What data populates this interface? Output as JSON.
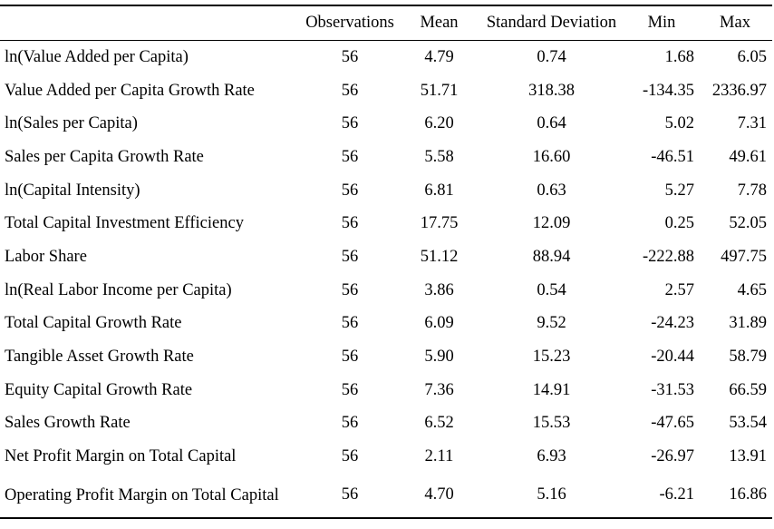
{
  "table": {
    "headers": [
      "",
      "Observations",
      "Mean",
      "Standard Deviation",
      "Min",
      "Max"
    ],
    "rows": [
      {
        "label": "ln(Value Added per Capita)",
        "obs": "56",
        "mean": "4.79",
        "sd": "0.74",
        "min": "1.68",
        "max": "6.05"
      },
      {
        "label": "Value Added per Capita Growth Rate",
        "obs": "56",
        "mean": "51.71",
        "sd": "318.38",
        "min": "-134.35",
        "max": "2336.97"
      },
      {
        "label": "ln(Sales per Capita)",
        "obs": "56",
        "mean": "6.20",
        "sd": "0.64",
        "min": "5.02",
        "max": "7.31"
      },
      {
        "label": "Sales per Capita Growth Rate",
        "obs": "56",
        "mean": "5.58",
        "sd": "16.60",
        "min": "-46.51",
        "max": "49.61"
      },
      {
        "label": "ln(Capital Intensity)",
        "obs": "56",
        "mean": "6.81",
        "sd": "0.63",
        "min": "5.27",
        "max": "7.78"
      },
      {
        "label": "Total Capital Investment Efficiency",
        "obs": "56",
        "mean": "17.75",
        "sd": "12.09",
        "min": "0.25",
        "max": "52.05"
      },
      {
        "label": "Labor Share",
        "obs": "56",
        "mean": "51.12",
        "sd": "88.94",
        "min": "-222.88",
        "max": "497.75"
      },
      {
        "label": "ln(Real Labor Income per Capita)",
        "obs": "56",
        "mean": "3.86",
        "sd": "0.54",
        "min": "2.57",
        "max": "4.65"
      },
      {
        "label": "Total Capital Growth Rate",
        "obs": "56",
        "mean": "6.09",
        "sd": "9.52",
        "min": "-24.23",
        "max": "31.89"
      },
      {
        "label": "Tangible Asset Growth Rate",
        "obs": "56",
        "mean": "5.90",
        "sd": "15.23",
        "min": "-20.44",
        "max": "58.79"
      },
      {
        "label": "Equity Capital Growth Rate",
        "obs": "56",
        "mean": "7.36",
        "sd": "14.91",
        "min": "-31.53",
        "max": "66.59"
      },
      {
        "label": "Sales Growth Rate",
        "obs": "56",
        "mean": "6.52",
        "sd": "15.53",
        "min": "-47.65",
        "max": "53.54"
      },
      {
        "label": "Net Profit Margin on Total Capital",
        "obs": "56",
        "mean": "2.11",
        "sd": "6.93",
        "min": "-26.97",
        "max": "13.91"
      },
      {
        "label": "Operating Profit Margin on Total Capital",
        "obs": "56",
        "mean": "4.70",
        "sd": "5.16",
        "min": "-6.21",
        "max": "16.86"
      }
    ]
  }
}
